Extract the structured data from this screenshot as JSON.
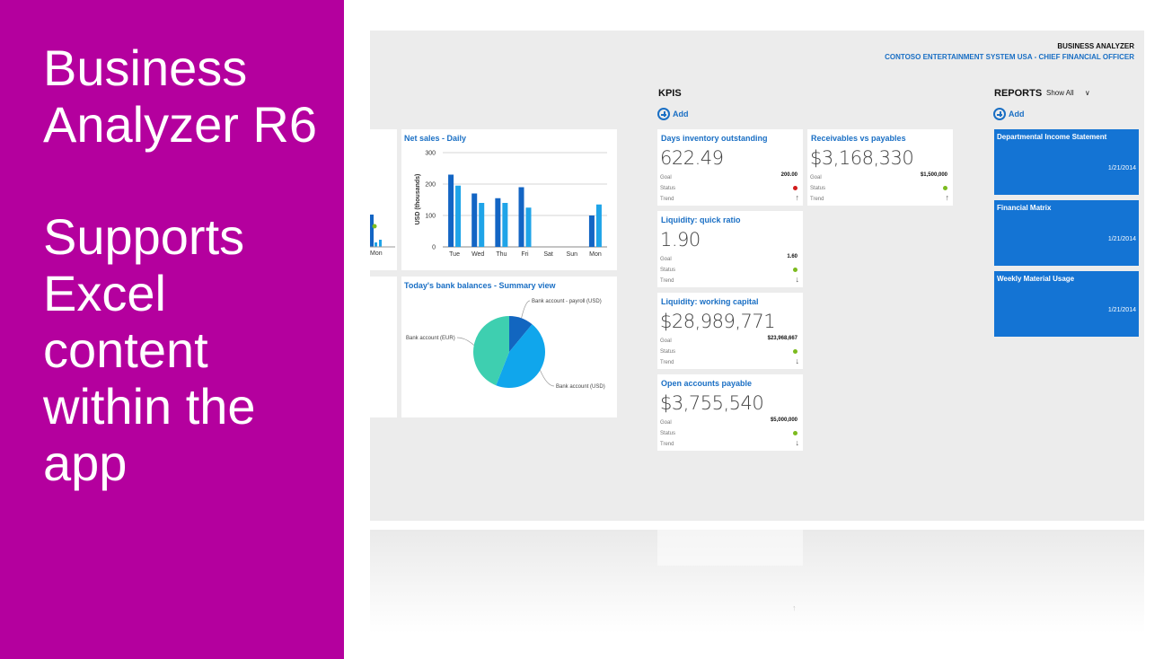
{
  "slide": {
    "title": "Business Analyzer R6",
    "subtitle": "Supports Excel content within the app"
  },
  "app": {
    "title": "BUSINESS ANALYZER",
    "subtitle": "CONTOSO ENTERTAINMENT SYSTEM USA - CHIEF FINANCIAL OFFICER"
  },
  "sections": {
    "kpis_title": "KPIS",
    "kpis_add": "Add",
    "reports_title": "REPORTS",
    "reports_filter": "Show All",
    "reports_add": "Add"
  },
  "kpi_labels": {
    "goal": "Goal",
    "status": "Status",
    "trend": "Trend"
  },
  "kpis": [
    {
      "title": "Days inventory outstanding",
      "value": "622.49",
      "goal": "200.00",
      "status_color": "#d21b1b",
      "trend": "up"
    },
    {
      "title": "Receivables vs payables",
      "value": "$3,168,330",
      "goal": "$1,500,000",
      "status_color": "#7cbb1f",
      "trend": "up"
    },
    {
      "title": "Liquidity: quick ratio",
      "value": "1.90",
      "goal": "1.60",
      "status_color": "#7cbb1f",
      "trend": "down"
    },
    {
      "title": "Liquidity: working capital",
      "value": "$28,989,771",
      "goal": "$23,968,667",
      "status_color": "#7cbb1f",
      "trend": "down"
    },
    {
      "title": "Open accounts payable",
      "value": "$3,755,540",
      "goal": "$5,000,000",
      "status_color": "#7cbb1f",
      "trend": "down"
    }
  ],
  "reports": [
    {
      "name": "Departmental Income Statement",
      "date": "1/21/2014"
    },
    {
      "name": "Financial Matrix",
      "date": "1/21/2014"
    },
    {
      "name": "Weekly Material Usage",
      "date": "1/21/2014"
    }
  ],
  "partial_tile": {
    "tick_label": "Mon"
  },
  "chart_data": [
    {
      "type": "bar",
      "title": "Net sales - Daily",
      "ylabel": "USD (thousands)",
      "ylim": [
        0,
        300
      ],
      "yticks": [
        0,
        100,
        200,
        300
      ],
      "categories": [
        "Tue",
        "Wed",
        "Thu",
        "Fri",
        "Sat",
        "Sun",
        "Mon"
      ],
      "series": [
        {
          "values": [
            230,
            170,
            155,
            190,
            0,
            0,
            100
          ],
          "color": "#1365c4"
        },
        {
          "values": [
            195,
            140,
            140,
            125,
            0,
            0,
            135
          ],
          "color": "#1fa4e8"
        }
      ],
      "grid": true
    },
    {
      "type": "pie",
      "title": "Today's bank balances - Summary view",
      "labels": [
        "Bank account - payroll (USD)",
        "Bank account (USD)",
        "Bank account (EUR)"
      ],
      "values": [
        11,
        45,
        44
      ],
      "colors": [
        "#1266c0",
        "#10a6ec",
        "#3ecfb0"
      ]
    }
  ]
}
